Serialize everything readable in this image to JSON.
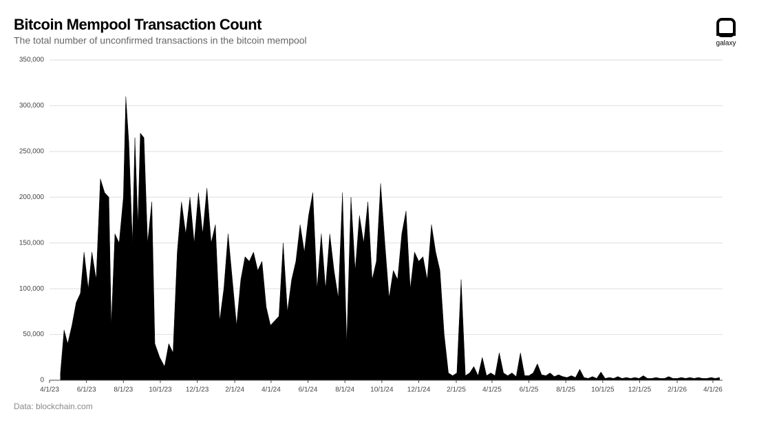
{
  "chart_data": {
    "type": "area",
    "title": "Bitcoin Mempool Transaction Count",
    "subtitle": "The total number of unconfirmed transactions in the bitcoin mempool",
    "source": "Data: blockchain.com",
    "logo_text": "galaxy",
    "color": "#000000",
    "grid": true,
    "xlim": [
      "2023-04-01",
      "2026-04-17"
    ],
    "ylim": [
      0,
      350000
    ],
    "yticks": [
      0,
      {
        "value": 50000,
        "label": "50,000"
      },
      {
        "value": 100000,
        "label": "100,000"
      },
      {
        "value": 150000,
        "label": "150,000"
      },
      {
        "value": 200000,
        "label": "200,000"
      },
      {
        "value": 250000,
        "label": "250,000"
      },
      {
        "value": 300000,
        "label": "300,000"
      },
      {
        "value": 350000,
        "label": "350,000"
      }
    ],
    "xticks": [
      {
        "value": "2023-04-01",
        "label": "4/1/23"
      },
      {
        "value": "2023-06-01",
        "label": "6/1/23"
      },
      {
        "value": "2023-08-01",
        "label": "8/1/23"
      },
      {
        "value": "2023-10-01",
        "label": "10/1/23"
      },
      {
        "value": "2023-12-01",
        "label": "12/1/23"
      },
      {
        "value": "2024-02-01",
        "label": "2/1/24"
      },
      {
        "value": "2024-04-01",
        "label": "4/1/24"
      },
      {
        "value": "2024-06-01",
        "label": "6/1/24"
      },
      {
        "value": "2024-08-01",
        "label": "8/1/24"
      },
      {
        "value": "2024-10-01",
        "label": "10/1/24"
      },
      {
        "value": "2024-12-01",
        "label": "12/1/24"
      },
      {
        "value": "2025-02-01",
        "label": "2/1/25"
      },
      {
        "value": "2025-04-01",
        "label": "4/1/25"
      },
      {
        "value": "2025-06-01",
        "label": "6/1/25"
      },
      {
        "value": "2025-08-01",
        "label": "8/1/25"
      },
      {
        "value": "2025-10-01",
        "label": "10/1/25"
      },
      {
        "value": "2025-12-01",
        "label": "12/1/25"
      },
      {
        "value": "2026-02-01",
        "label": "2/1/26"
      },
      {
        "value": "2026-04-01",
        "label": "4/1/26"
      }
    ],
    "x": [
      "2023-04-19",
      "2023-04-25",
      "2023-05-01",
      "2023-05-08",
      "2023-05-15",
      "2023-05-22",
      "2023-05-28",
      "2023-06-04",
      "2023-06-10",
      "2023-06-17",
      "2023-06-24",
      "2023-07-01",
      "2023-07-08",
      "2023-07-12",
      "2023-07-18",
      "2023-07-25",
      "2023-08-01",
      "2023-08-05",
      "2023-08-10",
      "2023-08-16",
      "2023-08-20",
      "2023-08-25",
      "2023-08-29",
      "2023-09-04",
      "2023-09-10",
      "2023-09-17",
      "2023-09-22",
      "2023-09-30",
      "2023-10-08",
      "2023-10-15",
      "2023-10-22",
      "2023-10-29",
      "2023-11-05",
      "2023-11-12",
      "2023-11-19",
      "2023-11-26",
      "2023-12-03",
      "2023-12-10",
      "2023-12-17",
      "2023-12-24",
      "2023-12-31",
      "2024-01-07",
      "2024-01-14",
      "2024-01-21",
      "2024-01-28",
      "2024-02-04",
      "2024-02-11",
      "2024-02-18",
      "2024-02-25",
      "2024-03-03",
      "2024-03-10",
      "2024-03-17",
      "2024-03-24",
      "2024-03-31",
      "2024-04-07",
      "2024-04-14",
      "2024-04-21",
      "2024-04-28",
      "2024-05-05",
      "2024-05-12",
      "2024-05-19",
      "2024-05-26",
      "2024-06-02",
      "2024-06-09",
      "2024-06-16",
      "2024-06-23",
      "2024-06-30",
      "2024-07-07",
      "2024-07-14",
      "2024-07-21",
      "2024-07-28",
      "2024-08-04",
      "2024-08-11",
      "2024-08-18",
      "2024-08-25",
      "2024-09-01",
      "2024-09-08",
      "2024-09-15",
      "2024-09-22",
      "2024-09-29",
      "2024-10-06",
      "2024-10-13",
      "2024-10-20",
      "2024-10-27",
      "2024-11-03",
      "2024-11-10",
      "2024-11-17",
      "2024-11-24",
      "2024-12-01",
      "2024-12-08",
      "2024-12-15",
      "2024-12-22",
      "2024-12-29",
      "2025-01-05",
      "2025-01-12",
      "2025-01-19",
      "2025-01-26",
      "2025-02-02",
      "2025-02-09",
      "2025-02-16",
      "2025-02-23",
      "2025-03-02",
      "2025-03-09",
      "2025-03-16",
      "2025-03-23",
      "2025-03-30",
      "2025-04-06",
      "2025-04-13",
      "2025-04-20",
      "2025-04-27",
      "2025-05-04",
      "2025-05-11",
      "2025-05-18",
      "2025-05-25",
      "2025-06-01",
      "2025-06-08",
      "2025-06-15",
      "2025-06-22",
      "2025-06-29",
      "2025-07-06",
      "2025-07-13",
      "2025-07-20",
      "2025-07-27",
      "2025-08-03",
      "2025-08-10",
      "2025-08-17",
      "2025-08-24",
      "2025-08-31",
      "2025-09-07",
      "2025-09-14",
      "2025-09-21",
      "2025-09-28",
      "2025-10-05",
      "2025-10-12",
      "2025-10-19",
      "2025-10-26",
      "2025-11-02",
      "2025-11-09",
      "2025-11-16",
      "2025-11-23",
      "2025-11-30",
      "2025-12-07",
      "2025-12-14",
      "2025-12-21",
      "2025-12-28",
      "2026-01-04",
      "2026-01-11",
      "2026-01-18",
      "2026-01-25",
      "2026-02-01",
      "2026-02-08",
      "2026-02-15",
      "2026-02-22",
      "2026-03-01",
      "2026-03-08",
      "2026-03-15",
      "2026-03-22",
      "2026-03-29",
      "2026-04-05",
      "2026-04-12"
    ],
    "values": [
      8000,
      55000,
      40000,
      60000,
      85000,
      95000,
      140000,
      100000,
      140000,
      110000,
      220000,
      205000,
      200000,
      60000,
      160000,
      150000,
      200000,
      310000,
      260000,
      150000,
      265000,
      170000,
      270000,
      265000,
      150000,
      195000,
      40000,
      25000,
      15000,
      40000,
      30000,
      140000,
      195000,
      160000,
      200000,
      150000,
      205000,
      160000,
      210000,
      150000,
      170000,
      65000,
      100000,
      160000,
      110000,
      60000,
      110000,
      135000,
      130000,
      140000,
      120000,
      130000,
      80000,
      60000,
      65000,
      70000,
      150000,
      75000,
      110000,
      130000,
      170000,
      140000,
      180000,
      205000,
      100000,
      160000,
      100000,
      160000,
      120000,
      90000,
      205000,
      40000,
      200000,
      120000,
      180000,
      150000,
      195000,
      110000,
      130000,
      215000,
      150000,
      90000,
      120000,
      110000,
      160000,
      185000,
      100000,
      140000,
      130000,
      135000,
      110000,
      170000,
      140000,
      120000,
      50000,
      8000,
      5000,
      8000,
      110000,
      5000,
      8000,
      15000,
      5000,
      25000,
      5000,
      8000,
      5000,
      30000,
      8000,
      5000,
      8000,
      4000,
      30000,
      5000,
      5000,
      8000,
      18000,
      6000,
      5000,
      8000,
      4000,
      6000,
      4000,
      3000,
      5000,
      3000,
      12000,
      3000,
      2000,
      4000,
      2000,
      9000,
      2000,
      3000,
      2000,
      4000,
      2000,
      3000,
      2000,
      3000,
      2000,
      5000,
      2000,
      2000,
      3000,
      2000,
      2000,
      4000,
      2000,
      2000,
      3000,
      2000,
      3000,
      2000,
      3000,
      2000,
      2000,
      3000,
      2000,
      3000
    ]
  }
}
